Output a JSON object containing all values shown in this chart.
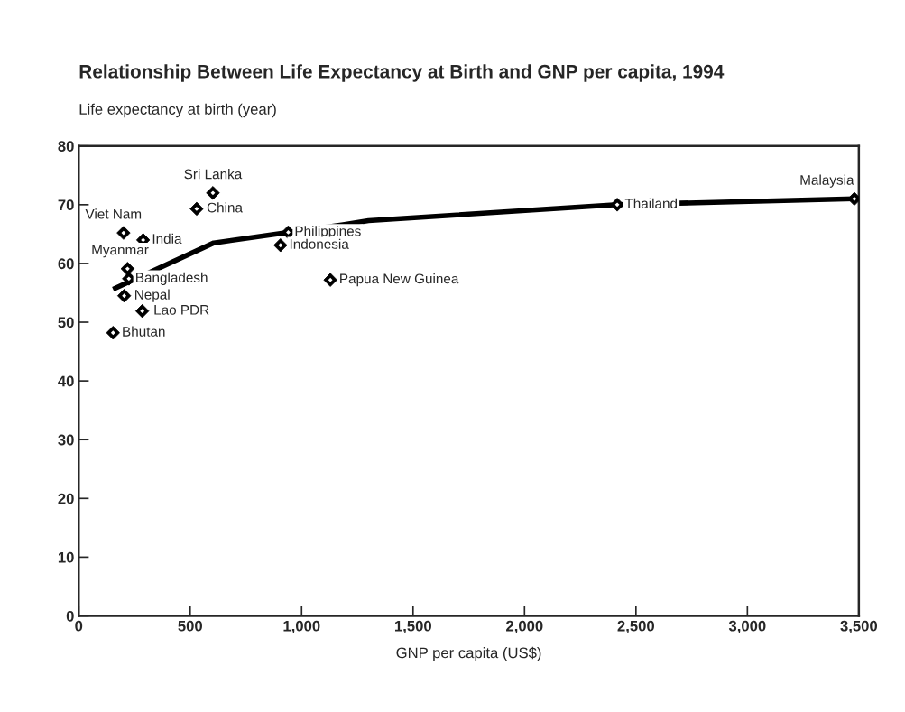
{
  "chart_data": {
    "type": "scatter",
    "title": "Relationship Between Life Expectancy at Birth and GNP per capita, 1994",
    "ylabel": "Life expectancy at birth (year)",
    "xlabel": "GNP per capita (US$)",
    "series": [
      {
        "marker": "diamond",
        "color": "#000000",
        "x": [
          602,
          529,
          201,
          289,
          219,
          225,
          204,
          285,
          154,
          940,
          905,
          1129,
          2416,
          3480
        ],
        "values": [
          72.0,
          69.3,
          65.2,
          64.0,
          59.1,
          57.4,
          54.5,
          51.9,
          48.2,
          65.3,
          63.1,
          57.2,
          70.0,
          71.0
        ]
      },
      {
        "type": "line",
        "marker": "none",
        "color": "#000000",
        "x": [
          154,
          606,
          940,
          1186,
          1300,
          2416,
          3480
        ],
        "values": [
          55.6,
          63.5,
          65.3,
          66.6,
          67.3,
          70.0,
          71.0
        ]
      }
    ],
    "annotations": [
      {
        "text": "Sri Lanka",
        "x": 602,
        "y": 72.0
      },
      {
        "text": "China",
        "x": 529,
        "y": 69.3
      },
      {
        "text": "Viet Nam",
        "x": 201,
        "y": 65.2
      },
      {
        "text": "India",
        "x": 289,
        "y": 64.0
      },
      {
        "text": "Myanmar",
        "x": 219,
        "y": 59.1
      },
      {
        "text": "Bangladesh",
        "x": 225,
        "y": 57.4
      },
      {
        "text": "Nepal",
        "x": 204,
        "y": 54.5
      },
      {
        "text": "Lao PDR",
        "x": 285,
        "y": 51.9
      },
      {
        "text": "Bhutan",
        "x": 154,
        "y": 48.2
      },
      {
        "text": "Philippines",
        "x": 940,
        "y": 65.3
      },
      {
        "text": "Indonesia",
        "x": 905,
        "y": 63.1
      },
      {
        "text": "Papua New Guinea",
        "x": 1129,
        "y": 57.2
      },
      {
        "text": "Thailand",
        "x": 2416,
        "y": 70.0
      },
      {
        "text": "Malaysia",
        "x": 3480,
        "y": 71.0
      }
    ],
    "grid": false,
    "legend": false,
    "xlim": [
      0,
      3500
    ],
    "xticks": [
      0,
      500,
      {
        "value": 1000,
        "label": "1,000"
      },
      {
        "value": 1500,
        "label": "1,500"
      },
      {
        "value": 2000,
        "label": "2,000"
      },
      {
        "value": 2500,
        "label": "2,500"
      },
      {
        "value": 3000,
        "label": "3,000"
      },
      {
        "value": 3500,
        "label": "3,500"
      }
    ],
    "ylim": [
      0,
      80
    ],
    "yticks": [
      0,
      10,
      20,
      30,
      40,
      50,
      60,
      70,
      80
    ]
  }
}
